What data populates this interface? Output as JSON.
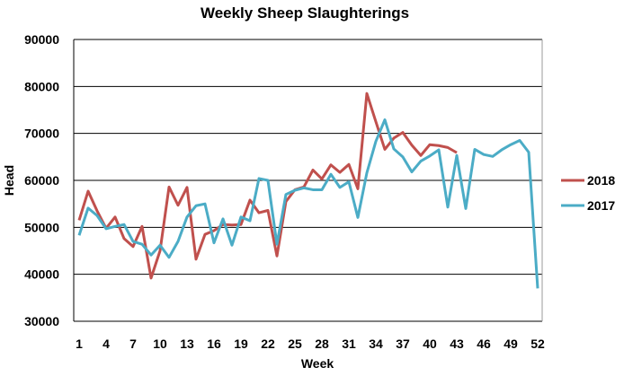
{
  "chart_data": {
    "type": "line",
    "title": "Weekly Sheep Slaughterings",
    "xlabel": "Week",
    "ylabel": "Head",
    "ylim": [
      30000,
      90000
    ],
    "yticks": [
      30000,
      40000,
      50000,
      60000,
      70000,
      80000,
      90000
    ],
    "xlim": [
      1,
      52
    ],
    "xticks": [
      1,
      4,
      7,
      10,
      13,
      16,
      19,
      22,
      25,
      28,
      31,
      34,
      37,
      40,
      43,
      46,
      49,
      52
    ],
    "grid": true,
    "legend_position": "right",
    "series": [
      {
        "name": "2018",
        "color": "#c0504d",
        "values": [
          51500,
          57700,
          53500,
          49800,
          52200,
          47600,
          45900,
          50200,
          39200,
          45000,
          58600,
          54700,
          58500,
          43200,
          48500,
          49300,
          50600,
          50500,
          50600,
          55800,
          53100,
          53600,
          43900,
          55500,
          58000,
          58600,
          62200,
          60300,
          63300,
          61700,
          63400,
          58200,
          78500,
          72500,
          66600,
          69000,
          70200,
          67500,
          65300,
          67600,
          67400,
          67000,
          65900
        ]
      },
      {
        "name": "2017",
        "color": "#4bacc6",
        "values": [
          48300,
          54100,
          52500,
          49700,
          50200,
          50600,
          47000,
          46400,
          44100,
          46200,
          43600,
          47000,
          52200,
          54600,
          55000,
          46700,
          51800,
          46200,
          52200,
          51400,
          60400,
          60000,
          46400,
          57000,
          57900,
          58400,
          58000,
          58000,
          61300,
          58500,
          59700,
          52100,
          61600,
          68300,
          72900,
          66700,
          65000,
          61800,
          64100,
          65200,
          66500,
          54300,
          65300,
          54000,
          66600,
          65500,
          65100,
          66500,
          67600,
          68500,
          66000,
          37000
        ]
      }
    ]
  }
}
